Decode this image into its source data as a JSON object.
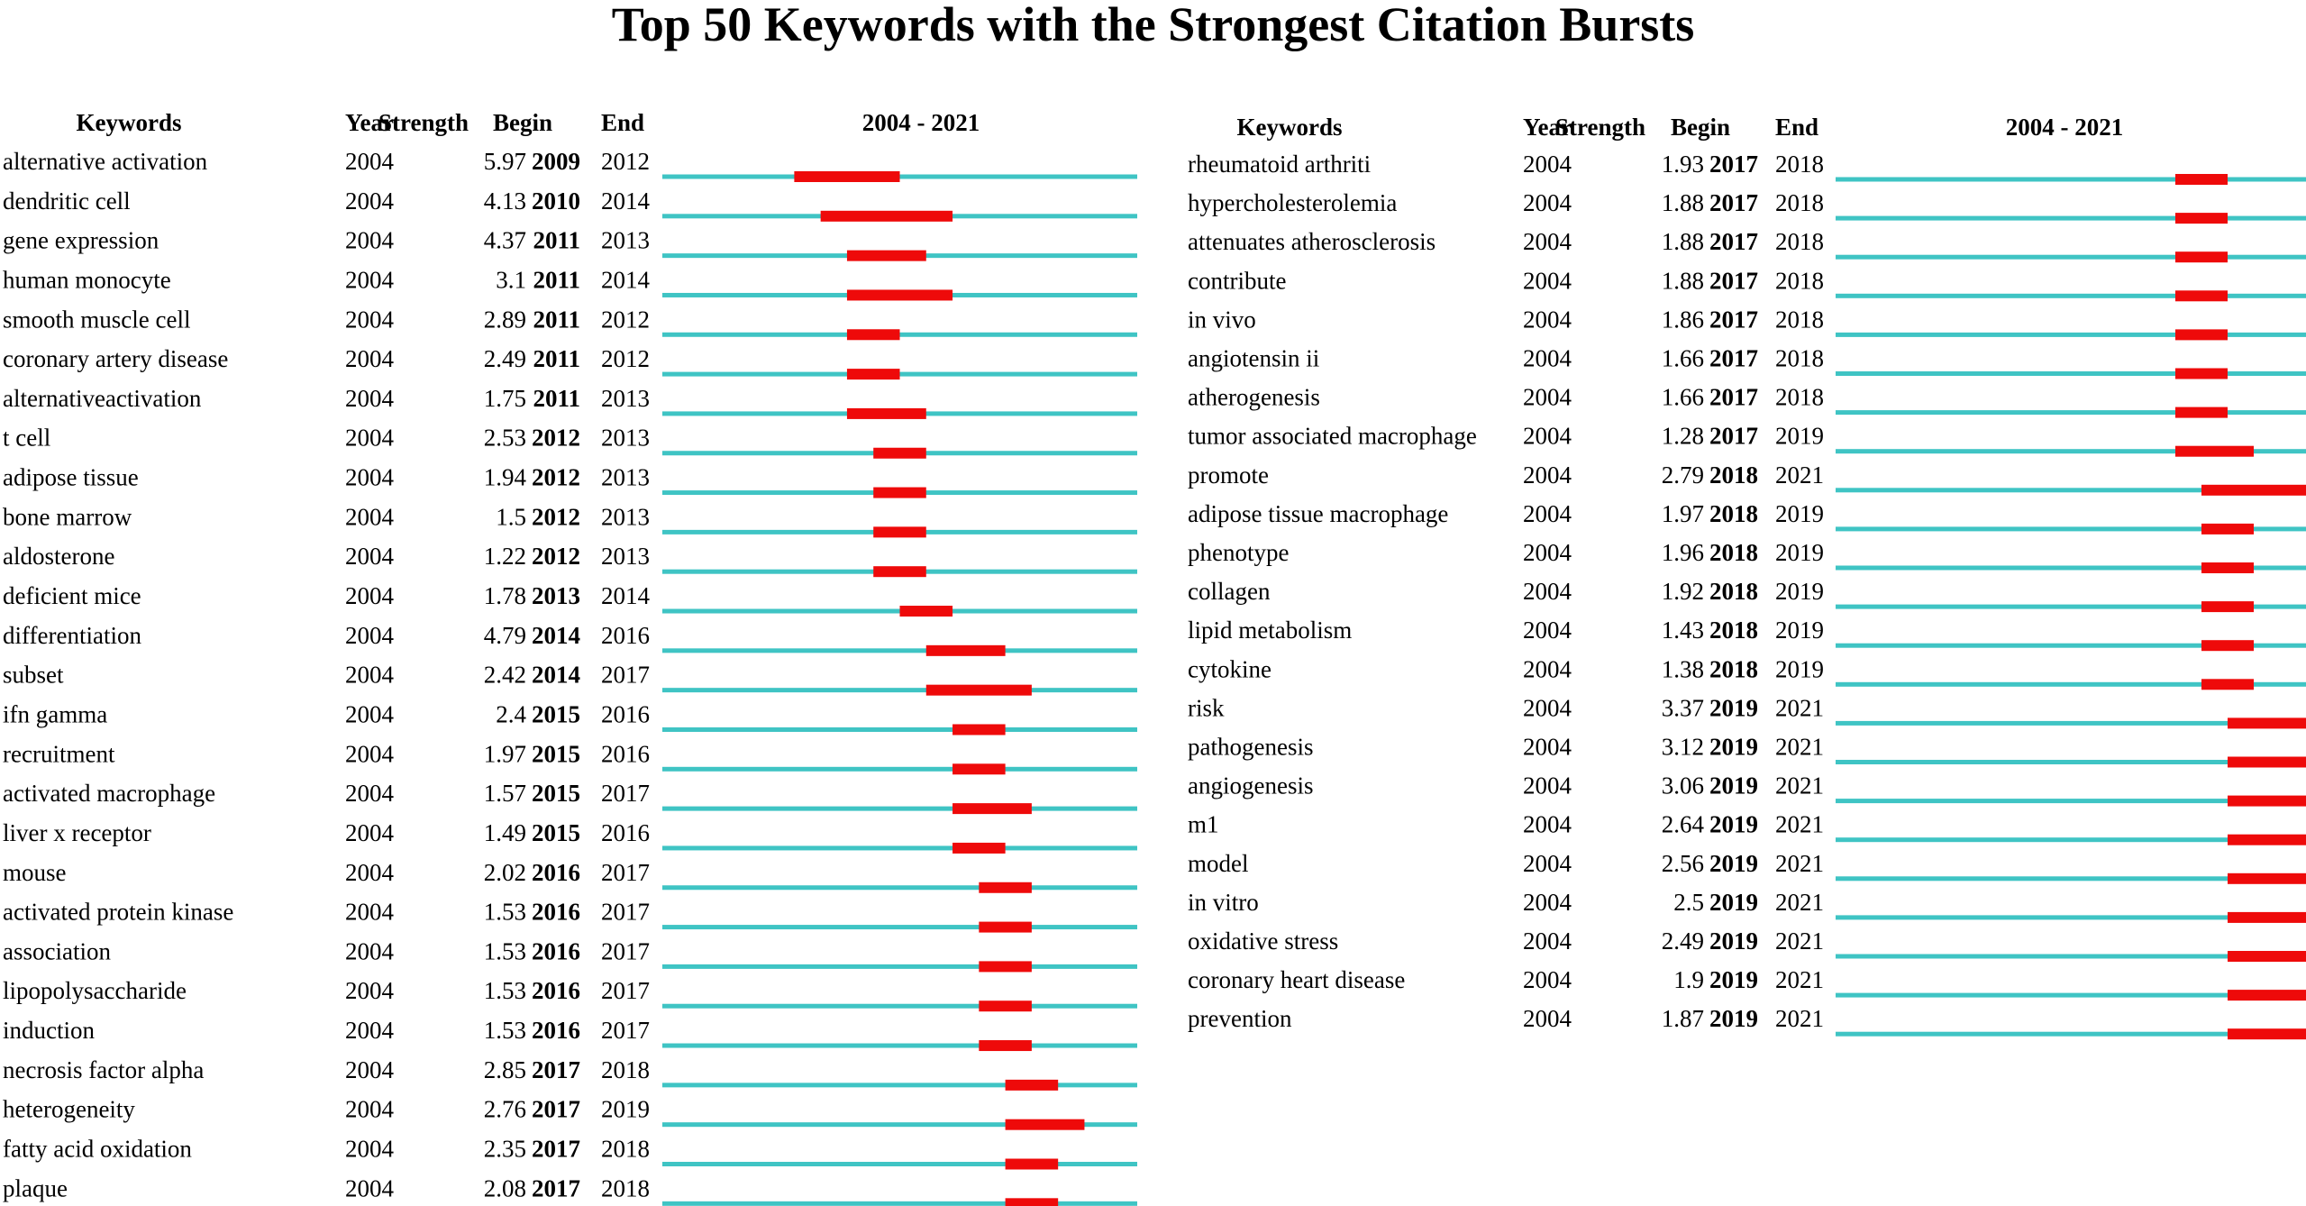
{
  "chart_data": {
    "type": "table",
    "title": "Top 50 Keywords with the Strongest Citation Bursts",
    "headers": {
      "keywords": "Keywords",
      "year": "Year",
      "strength": "Strength",
      "begin": "Begin",
      "end": "End",
      "range": "2004 - 2021"
    },
    "range_start": 2004,
    "range_end": 2021,
    "colors": {
      "timeline": "#3fc4c4",
      "burst": "#ee0a0a"
    },
    "left_rows": [
      {
        "keyword": "alternative activation",
        "year": "2004",
        "strength": "5.97",
        "begin": "2009",
        "end": "2012"
      },
      {
        "keyword": "dendritic cell",
        "year": "2004",
        "strength": "4.13",
        "begin": "2010",
        "end": "2014"
      },
      {
        "keyword": "gene expression",
        "year": "2004",
        "strength": "4.37",
        "begin": "2011",
        "end": "2013"
      },
      {
        "keyword": "human monocyte",
        "year": "2004",
        "strength": "3.1",
        "begin": "2011",
        "end": "2014"
      },
      {
        "keyword": "smooth muscle cell",
        "year": "2004",
        "strength": "2.89",
        "begin": "2011",
        "end": "2012"
      },
      {
        "keyword": "coronary artery disease",
        "year": "2004",
        "strength": "2.49",
        "begin": "2011",
        "end": "2012"
      },
      {
        "keyword": "alternativeactivation",
        "year": "2004",
        "strength": "1.75",
        "begin": "2011",
        "end": "2013"
      },
      {
        "keyword": "t cell",
        "year": "2004",
        "strength": "2.53",
        "begin": "2012",
        "end": "2013"
      },
      {
        "keyword": "adipose tissue",
        "year": "2004",
        "strength": "1.94",
        "begin": "2012",
        "end": "2013"
      },
      {
        "keyword": "bone marrow",
        "year": "2004",
        "strength": "1.5",
        "begin": "2012",
        "end": "2013"
      },
      {
        "keyword": "aldosterone",
        "year": "2004",
        "strength": "1.22",
        "begin": "2012",
        "end": "2013"
      },
      {
        "keyword": "deficient mice",
        "year": "2004",
        "strength": "1.78",
        "begin": "2013",
        "end": "2014"
      },
      {
        "keyword": "differentiation",
        "year": "2004",
        "strength": "4.79",
        "begin": "2014",
        "end": "2016"
      },
      {
        "keyword": "subset",
        "year": "2004",
        "strength": "2.42",
        "begin": "2014",
        "end": "2017"
      },
      {
        "keyword": "ifn gamma",
        "year": "2004",
        "strength": "2.4",
        "begin": "2015",
        "end": "2016"
      },
      {
        "keyword": "recruitment",
        "year": "2004",
        "strength": "1.97",
        "begin": "2015",
        "end": "2016"
      },
      {
        "keyword": "activated macrophage",
        "year": "2004",
        "strength": "1.57",
        "begin": "2015",
        "end": "2017"
      },
      {
        "keyword": "liver x receptor",
        "year": "2004",
        "strength": "1.49",
        "begin": "2015",
        "end": "2016"
      },
      {
        "keyword": "mouse",
        "year": "2004",
        "strength": "2.02",
        "begin": "2016",
        "end": "2017"
      },
      {
        "keyword": "activated protein kinase",
        "year": "2004",
        "strength": "1.53",
        "begin": "2016",
        "end": "2017"
      },
      {
        "keyword": "association",
        "year": "2004",
        "strength": "1.53",
        "begin": "2016",
        "end": "2017"
      },
      {
        "keyword": "lipopolysaccharide",
        "year": "2004",
        "strength": "1.53",
        "begin": "2016",
        "end": "2017"
      },
      {
        "keyword": "induction",
        "year": "2004",
        "strength": "1.53",
        "begin": "2016",
        "end": "2017"
      },
      {
        "keyword": "necrosis factor alpha",
        "year": "2004",
        "strength": "2.85",
        "begin": "2017",
        "end": "2018"
      },
      {
        "keyword": "heterogeneity",
        "year": "2004",
        "strength": "2.76",
        "begin": "2017",
        "end": "2019"
      },
      {
        "keyword": "fatty acid oxidation",
        "year": "2004",
        "strength": "2.35",
        "begin": "2017",
        "end": "2018"
      },
      {
        "keyword": "plaque",
        "year": "2004",
        "strength": "2.08",
        "begin": "2017",
        "end": "2018"
      }
    ],
    "right_rows": [
      {
        "keyword": "rheumatoid arthriti",
        "year": "2004",
        "strength": "1.93",
        "begin": "2017",
        "end": "2018"
      },
      {
        "keyword": "hypercholesterolemia",
        "year": "2004",
        "strength": "1.88",
        "begin": "2017",
        "end": "2018"
      },
      {
        "keyword": "attenuates atherosclerosis",
        "year": "2004",
        "strength": "1.88",
        "begin": "2017",
        "end": "2018"
      },
      {
        "keyword": "contribute",
        "year": "2004",
        "strength": "1.88",
        "begin": "2017",
        "end": "2018"
      },
      {
        "keyword": "in vivo",
        "year": "2004",
        "strength": "1.86",
        "begin": "2017",
        "end": "2018"
      },
      {
        "keyword": "angiotensin ii",
        "year": "2004",
        "strength": "1.66",
        "begin": "2017",
        "end": "2018"
      },
      {
        "keyword": "atherogenesis",
        "year": "2004",
        "strength": "1.66",
        "begin": "2017",
        "end": "2018"
      },
      {
        "keyword": "tumor associated macrophage",
        "year": "2004",
        "strength": "1.28",
        "begin": "2017",
        "end": "2019"
      },
      {
        "keyword": "promote",
        "year": "2004",
        "strength": "2.79",
        "begin": "2018",
        "end": "2021"
      },
      {
        "keyword": "adipose tissue macrophage",
        "year": "2004",
        "strength": "1.97",
        "begin": "2018",
        "end": "2019"
      },
      {
        "keyword": "phenotype",
        "year": "2004",
        "strength": "1.96",
        "begin": "2018",
        "end": "2019"
      },
      {
        "keyword": "collagen",
        "year": "2004",
        "strength": "1.92",
        "begin": "2018",
        "end": "2019"
      },
      {
        "keyword": "lipid metabolism",
        "year": "2004",
        "strength": "1.43",
        "begin": "2018",
        "end": "2019"
      },
      {
        "keyword": "cytokine",
        "year": "2004",
        "strength": "1.38",
        "begin": "2018",
        "end": "2019"
      },
      {
        "keyword": "risk",
        "year": "2004",
        "strength": "3.37",
        "begin": "2019",
        "end": "2021"
      },
      {
        "keyword": "pathogenesis",
        "year": "2004",
        "strength": "3.12",
        "begin": "2019",
        "end": "2021"
      },
      {
        "keyword": "angiogenesis",
        "year": "2004",
        "strength": "3.06",
        "begin": "2019",
        "end": "2021"
      },
      {
        "keyword": "m1",
        "year": "2004",
        "strength": "2.64",
        "begin": "2019",
        "end": "2021"
      },
      {
        "keyword": "model",
        "year": "2004",
        "strength": "2.56",
        "begin": "2019",
        "end": "2021"
      },
      {
        "keyword": "in vitro",
        "year": "2004",
        "strength": "2.5",
        "begin": "2019",
        "end": "2021"
      },
      {
        "keyword": "oxidative stress",
        "year": "2004",
        "strength": "2.49",
        "begin": "2019",
        "end": "2021"
      },
      {
        "keyword": "coronary heart disease",
        "year": "2004",
        "strength": "1.9",
        "begin": "2019",
        "end": "2021"
      },
      {
        "keyword": "prevention",
        "year": "2004",
        "strength": "1.87",
        "begin": "2019",
        "end": "2021"
      }
    ]
  }
}
